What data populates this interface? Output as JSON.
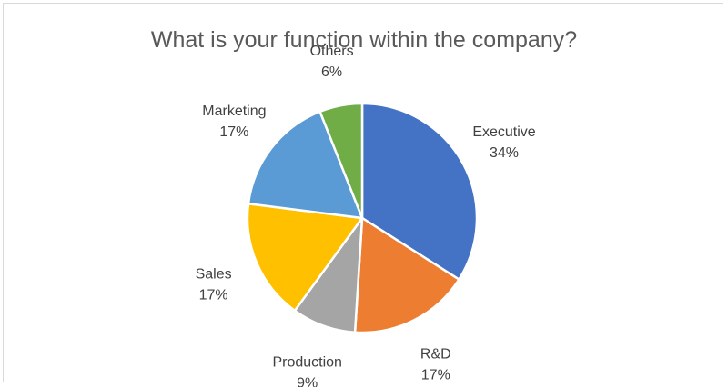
{
  "chart_data": {
    "type": "pie",
    "title": "What is your function within the company?",
    "categories": [
      "Executive",
      "R&D",
      "Production",
      "Sales",
      "Marketing",
      "Others"
    ],
    "values": [
      34,
      17,
      9,
      17,
      17,
      6
    ],
    "value_labels": [
      "34%",
      "17%",
      "9%",
      "17%",
      "17%",
      "6%"
    ],
    "colors": [
      "#4472C4",
      "#ED7D31",
      "#A5A5A5",
      "#FFC000",
      "#5B9BD5",
      "#70AD47"
    ],
    "slice_border_color": "#ffffff",
    "start_angle": "12 o'clock",
    "direction": "clockwise",
    "legend": "none (category names shown as data labels outside slices)"
  }
}
